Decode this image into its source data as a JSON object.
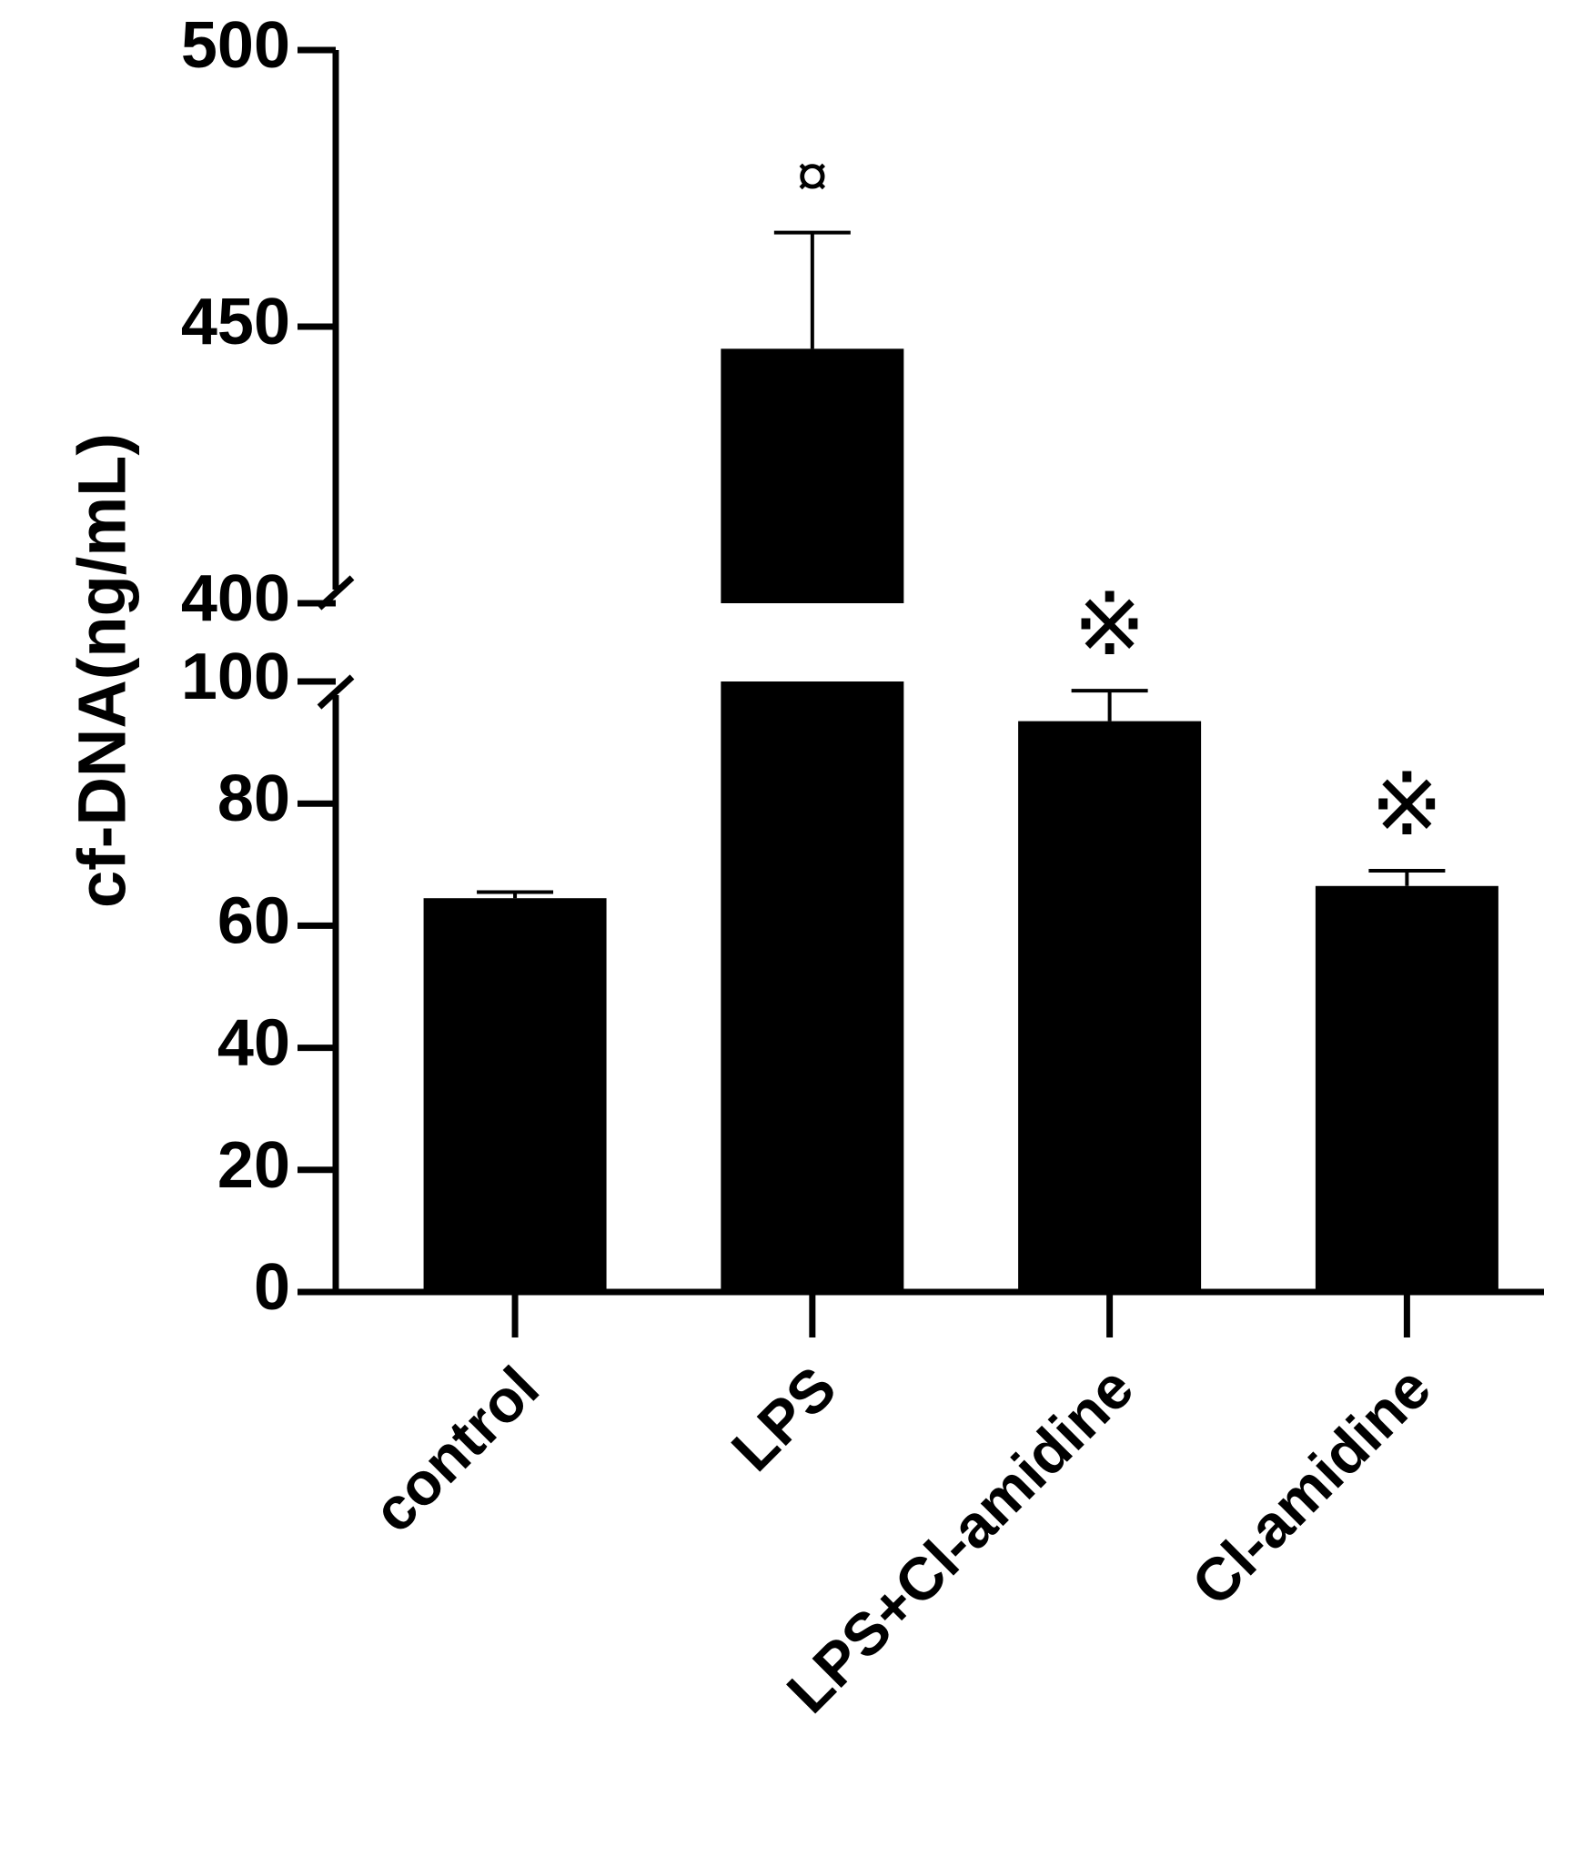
{
  "chart_data": {
    "type": "bar",
    "ylabel": "cf-DNA(ng/mL)",
    "categories": [
      "control",
      "LPS",
      "LPS+Cl-amidine",
      "Cl-amidine"
    ],
    "values": [
      64.5,
      446,
      93.5,
      66.5
    ],
    "errors": [
      1,
      21,
      5,
      2.5
    ],
    "annotations": [
      null,
      "¤",
      "※",
      "※"
    ],
    "color": "#000000",
    "ylim": [
      0,
      500
    ],
    "axis_break": [
      100,
      400
    ],
    "yticks": [
      0,
      20,
      40,
      60,
      80,
      100,
      400,
      450,
      500
    ]
  }
}
